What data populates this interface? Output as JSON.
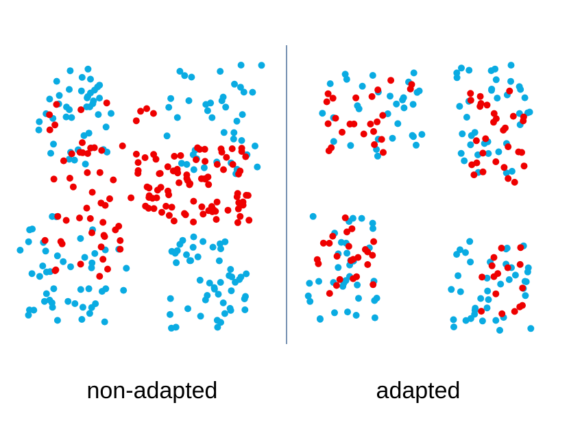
{
  "labels": {
    "left": "non-adapted",
    "right": "adapted"
  },
  "colors": {
    "blue": "#0aabe2",
    "red": "#ee0000",
    "divider": "#4a6f98"
  }
}
